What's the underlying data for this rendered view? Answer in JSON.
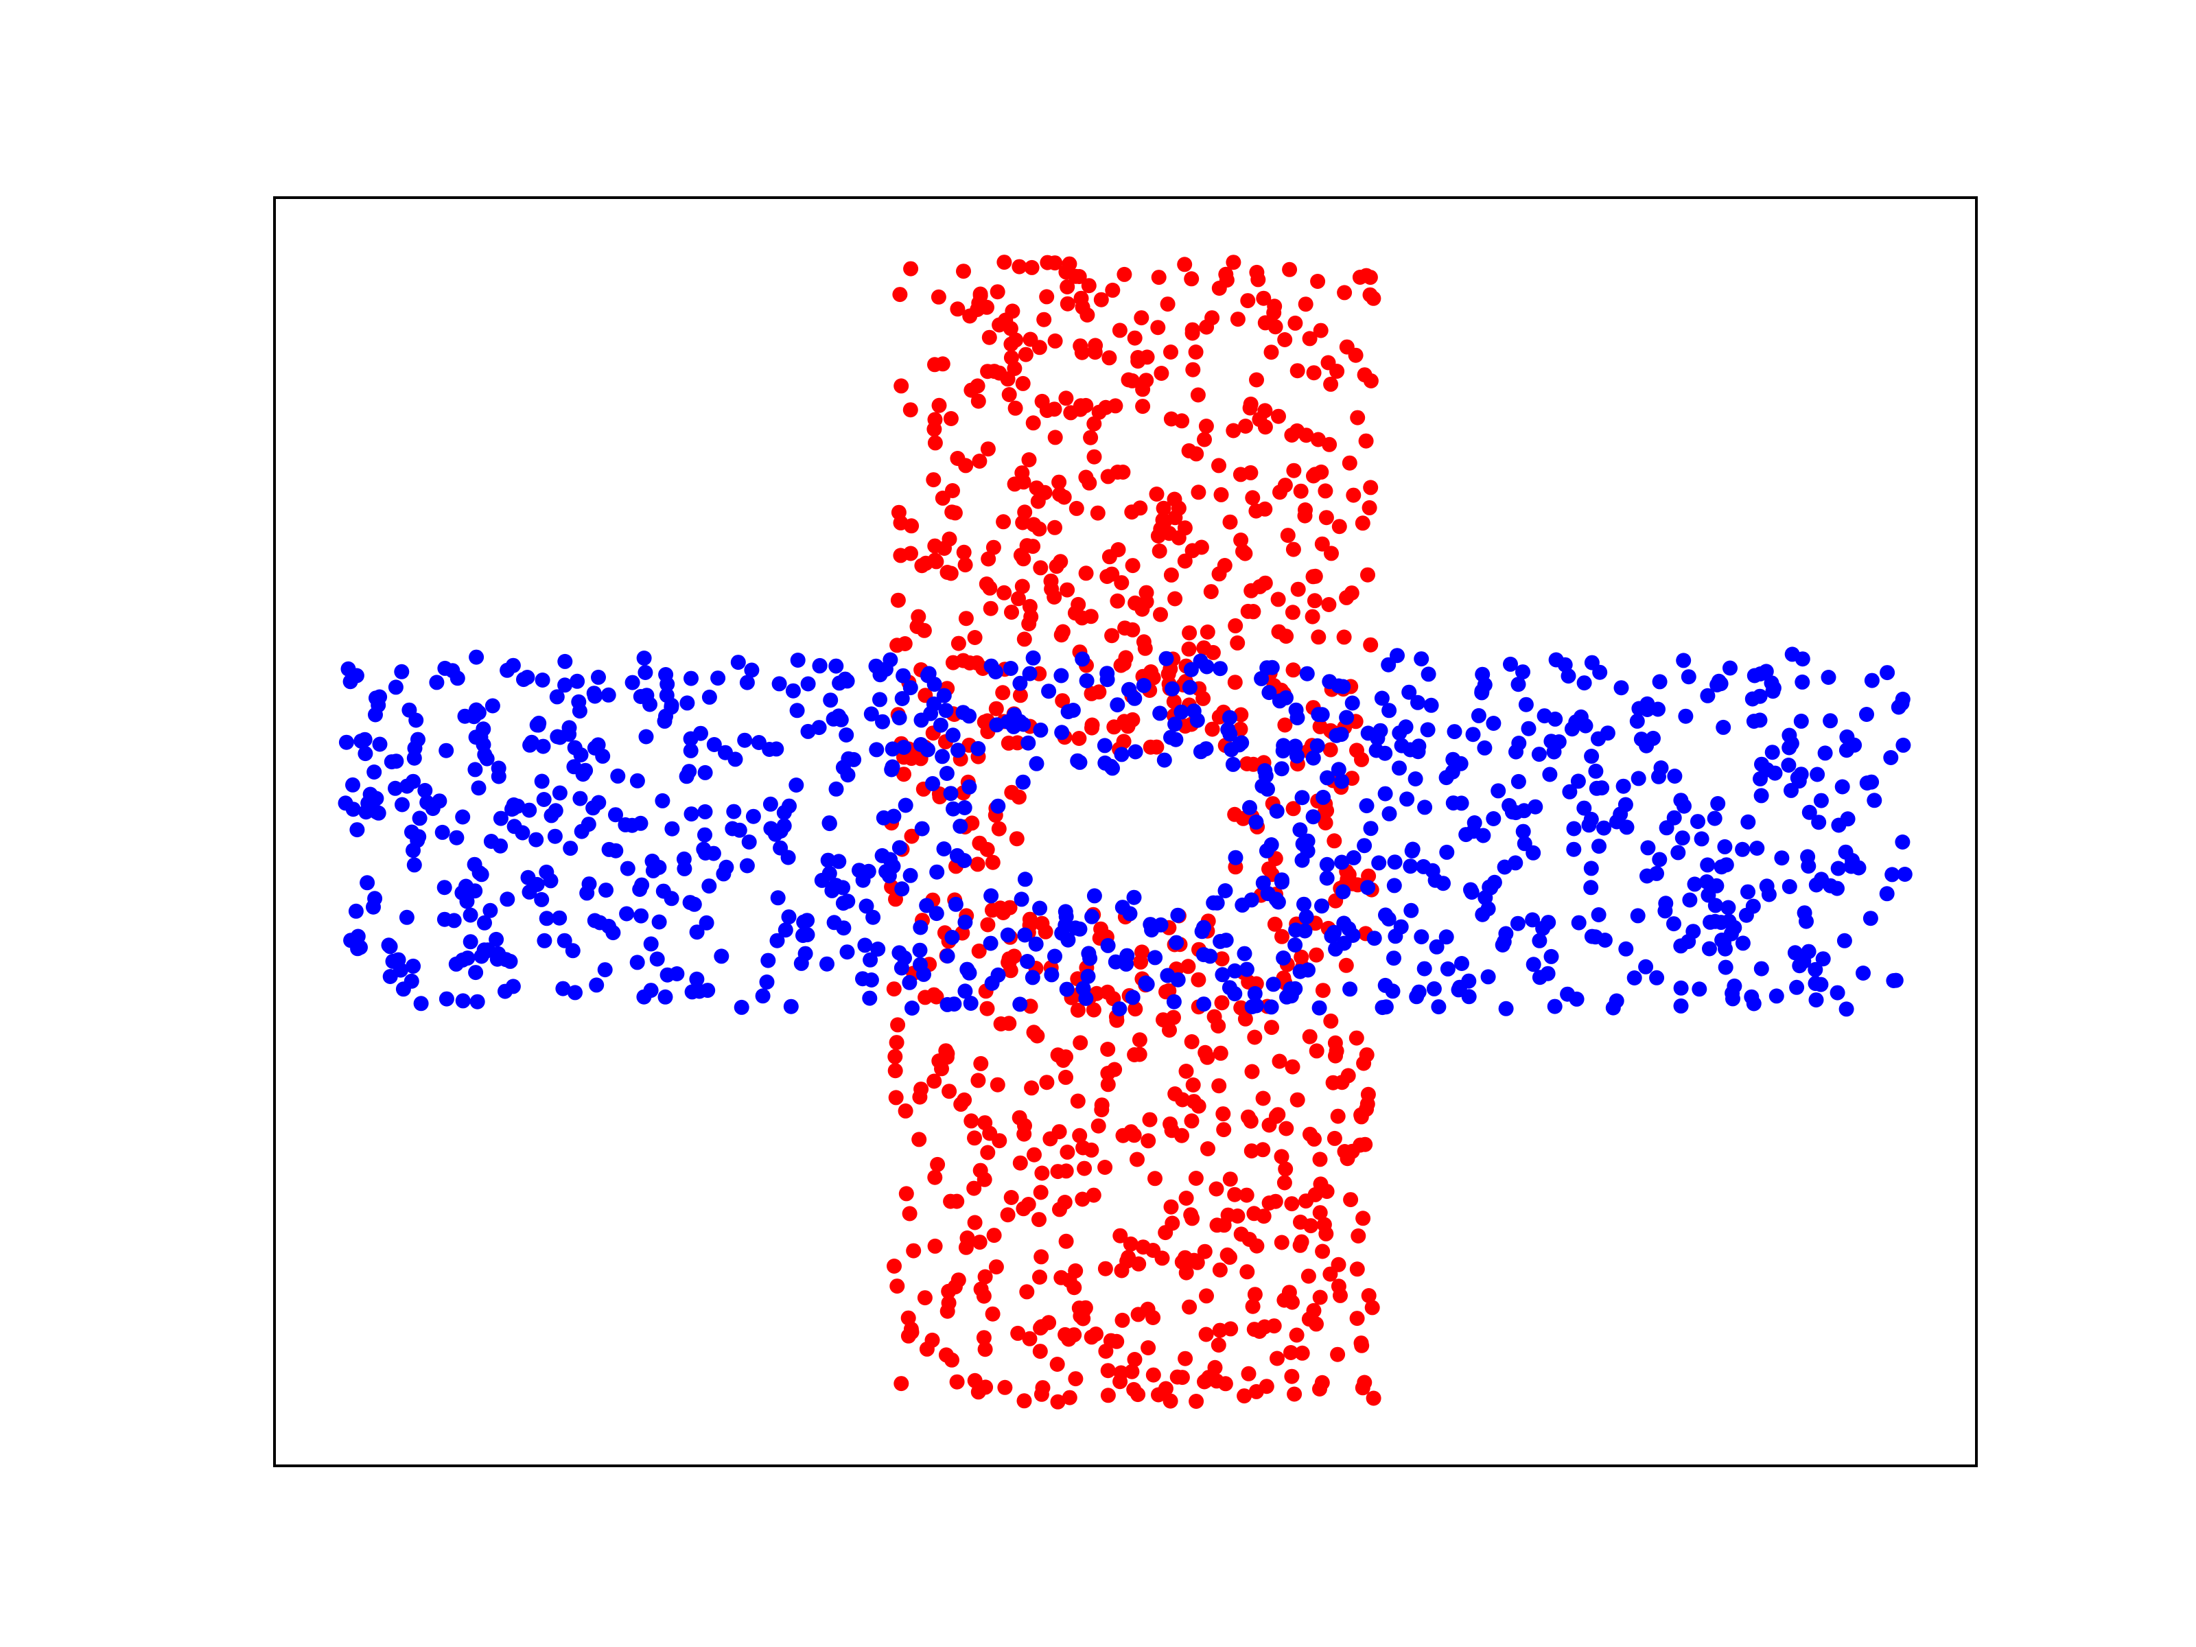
{
  "chart_data": {
    "type": "scatter",
    "title": "",
    "xlabel": "",
    "ylabel": "",
    "xlim": [
      -1.2,
      1.2
    ],
    "ylim": [
      -1.0,
      1.0
    ],
    "grid": false,
    "ticks": false,
    "legend": "none",
    "series": [
      {
        "color": "#ff0000",
        "shape": "vertical band with central gap",
        "region": {
          "x": [
            -0.33,
            0.35
          ],
          "y": [
            -0.9,
            0.9
          ]
        },
        "gap": {
          "x": [
            -0.15,
            0.15
          ],
          "y": [
            -0.13,
            0.13
          ]
        },
        "count": 980
      },
      {
        "color": "#0000ff",
        "shape": "horizontal band with central gap",
        "region": {
          "x": [
            -1.1,
            1.1
          ],
          "y": [
            -0.28,
            0.28
          ]
        },
        "gap": {
          "x": [
            -0.14,
            0.14
          ],
          "y": [
            -0.1,
            0.1
          ]
        },
        "count": 1010
      }
    ]
  }
}
